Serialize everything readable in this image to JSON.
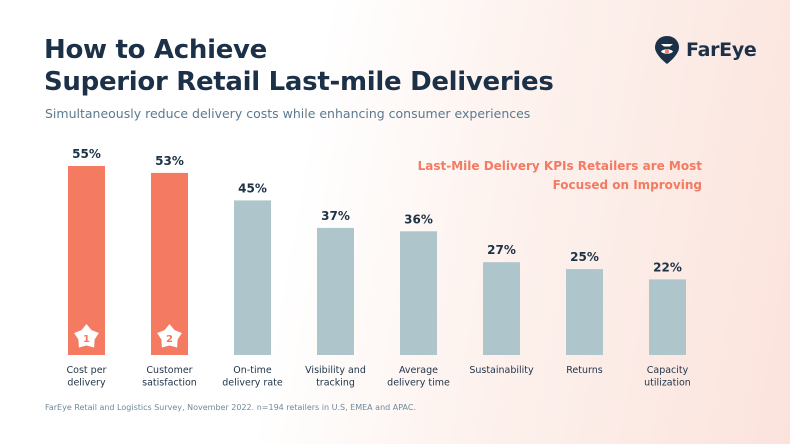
{
  "header": {
    "title_line1": "How to Achieve",
    "title_line2": "Superior Retail Last-mile Deliveries",
    "subtitle": "Simultaneously reduce delivery costs while enhancing consumer experiences"
  },
  "logo": {
    "brand": "FarEye",
    "icon": "fareye-map-pin-logo-icon"
  },
  "footnote": "FarEye Retail and Logistics Survey, November 2022. n=194 retailers in U.S, EMEA and APAC.",
  "colors": {
    "highlight": "#f47a62",
    "bar": "#aec6cb",
    "text": "#1e3346",
    "accent_title": "#f47a62"
  },
  "chart_data": {
    "type": "bar",
    "title_line1": "Last-Mile Delivery KPIs Retailers are Most",
    "title_line2": "Focused on Improving",
    "categories": [
      [
        "Cost per",
        "delivery"
      ],
      [
        "Customer",
        "satisfaction"
      ],
      [
        "On-time",
        "delivery rate"
      ],
      [
        "Visibility and",
        "tracking"
      ],
      [
        "Average",
        "delivery time"
      ],
      [
        "Sustainability"
      ],
      [
        "Returns"
      ],
      [
        "Capacity",
        "utilization"
      ]
    ],
    "values": [
      55,
      53,
      45,
      37,
      36,
      27,
      25,
      22
    ],
    "value_labels": [
      "55%",
      "53%",
      "45%",
      "37%",
      "36%",
      "27%",
      "25%",
      "22%"
    ],
    "unit": "%",
    "highlighted": [
      true,
      true,
      false,
      false,
      false,
      false,
      false,
      false
    ],
    "rank_badges": [
      "1",
      "2",
      null,
      null,
      null,
      null,
      null,
      null
    ],
    "ylim": [
      0,
      55
    ],
    "grid": false,
    "legend": "none"
  }
}
